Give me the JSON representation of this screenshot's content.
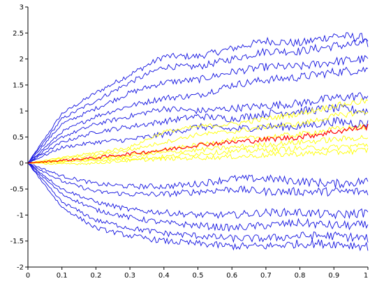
{
  "chart_data": {
    "type": "line",
    "title": "",
    "xlabel": "",
    "ylabel": "",
    "xlim": [
      0,
      1
    ],
    "ylim": [
      -2,
      3
    ],
    "x_ticks": [
      0,
      0.1,
      0.2,
      0.3,
      0.4,
      0.5,
      0.6,
      0.7,
      0.8,
      0.9,
      1
    ],
    "x_tick_labels": [
      "0",
      "0.1",
      "0.2",
      "0.3",
      "0.4",
      "0.5",
      "0.6",
      "0.7",
      "0.8",
      "0.9",
      "1"
    ],
    "y_ticks": [
      -2,
      -1.5,
      -1,
      -0.5,
      0,
      0.5,
      1,
      1.5,
      2,
      2.5,
      3
    ],
    "y_tick_labels": [
      "-2",
      "-1.5",
      "-1",
      "-0.5",
      "0",
      "0.5",
      "1",
      "1.5",
      "2",
      "2.5",
      "3"
    ],
    "grid": false,
    "legend": "none",
    "colors": {
      "blue": "#1010e0",
      "yellow": "#ffff00",
      "red": "#ff0000"
    },
    "x": [
      0,
      0.1,
      0.2,
      0.3,
      0.4,
      0.5,
      0.6,
      0.7,
      0.8,
      0.9,
      1
    ],
    "series": [
      {
        "color": "blue",
        "values": [
          0,
          0.95,
          1.35,
          1.7,
          2.05,
          2.05,
          2.2,
          2.35,
          2.3,
          2.45,
          2.4
        ]
      },
      {
        "color": "blue",
        "values": [
          0,
          0.85,
          1.2,
          1.55,
          1.85,
          1.85,
          2.0,
          2.15,
          2.15,
          2.25,
          2.3
        ]
      },
      {
        "color": "blue",
        "values": [
          0,
          0.75,
          1.05,
          1.35,
          1.55,
          1.6,
          1.75,
          1.85,
          1.85,
          1.95,
          2.0
        ]
      },
      {
        "color": "blue",
        "values": [
          0,
          0.6,
          0.9,
          1.1,
          1.25,
          1.3,
          1.5,
          1.6,
          1.65,
          1.75,
          1.8
        ]
      },
      {
        "color": "blue",
        "values": [
          0,
          0.5,
          0.75,
          0.9,
          1.05,
          1.0,
          1.05,
          1.1,
          1.15,
          1.25,
          1.3
        ]
      },
      {
        "color": "blue",
        "values": [
          0,
          0.4,
          0.6,
          0.7,
          0.8,
          0.9,
          0.85,
          0.95,
          1.0,
          1.05,
          1.0
        ]
      },
      {
        "color": "blue",
        "values": [
          0,
          0.3,
          0.4,
          0.45,
          0.55,
          0.7,
          0.65,
          0.7,
          0.7,
          0.8,
          0.75
        ]
      },
      {
        "color": "blue",
        "values": [
          0,
          -0.25,
          -0.4,
          -0.45,
          -0.45,
          -0.4,
          -0.3,
          -0.3,
          -0.35,
          -0.4,
          -0.35
        ]
      },
      {
        "color": "blue",
        "values": [
          0,
          -0.35,
          -0.55,
          -0.6,
          -0.6,
          -0.55,
          -0.5,
          -0.55,
          -0.55,
          -0.55,
          -0.55
        ]
      },
      {
        "color": "blue",
        "values": [
          0,
          -0.5,
          -0.75,
          -0.9,
          -0.95,
          -1.0,
          -1.0,
          -0.95,
          -0.95,
          -1.0,
          -0.95
        ]
      },
      {
        "color": "blue",
        "values": [
          0,
          -0.6,
          -0.9,
          -1.05,
          -1.15,
          -1.2,
          -1.25,
          -1.2,
          -1.15,
          -1.2,
          -1.2
        ]
      },
      {
        "color": "blue",
        "values": [
          0,
          -0.75,
          -1.1,
          -1.25,
          -1.35,
          -1.4,
          -1.45,
          -1.45,
          -1.4,
          -1.4,
          -1.45
        ]
      },
      {
        "color": "blue",
        "values": [
          0,
          -0.85,
          -1.25,
          -1.4,
          -1.5,
          -1.55,
          -1.6,
          -1.6,
          -1.55,
          -1.55,
          -1.6
        ]
      },
      {
        "color": "yellow",
        "values": [
          0,
          0.1,
          0.2,
          0.3,
          0.6,
          0.7,
          0.75,
          0.85,
          0.95,
          1.1,
          1.2
        ]
      },
      {
        "color": "yellow",
        "values": [
          0,
          0.08,
          0.15,
          0.25,
          0.4,
          0.55,
          0.6,
          0.7,
          0.75,
          0.9,
          1.0
        ]
      },
      {
        "color": "yellow",
        "values": [
          0,
          0.05,
          0.1,
          0.15,
          0.25,
          0.35,
          0.45,
          0.5,
          0.55,
          0.65,
          0.7
        ]
      },
      {
        "color": "yellow",
        "values": [
          0,
          0.03,
          0.08,
          0.12,
          0.2,
          0.25,
          0.3,
          0.35,
          0.4,
          0.45,
          0.5
        ]
      },
      {
        "color": "yellow",
        "values": [
          0,
          0.02,
          0.05,
          0.08,
          0.12,
          0.18,
          0.22,
          0.25,
          0.28,
          0.3,
          0.35
        ]
      },
      {
        "color": "yellow",
        "values": [
          0,
          -0.02,
          0.0,
          0.05,
          0.08,
          0.1,
          0.12,
          0.15,
          0.18,
          0.2,
          0.25
        ]
      },
      {
        "color": "red",
        "values": [
          0,
          0.05,
          0.1,
          0.18,
          0.25,
          0.35,
          0.4,
          0.45,
          0.5,
          0.6,
          0.7
        ]
      }
    ]
  }
}
